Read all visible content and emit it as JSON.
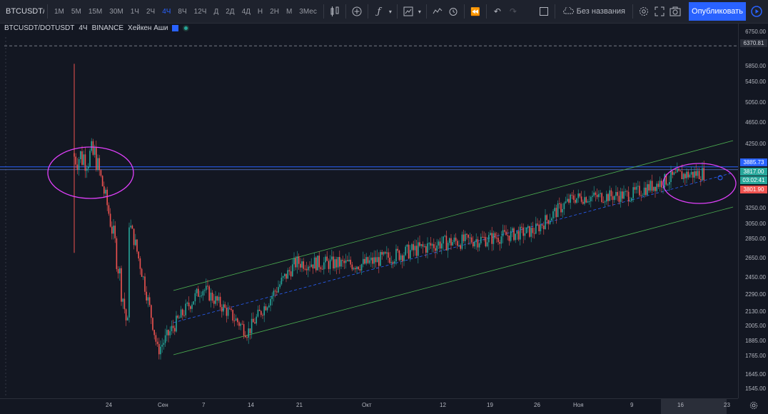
{
  "toolbar": {
    "symbol": "BTCUSDT/DOTUSDT",
    "symbol_short": "BTCUSDT/D",
    "timeframes": [
      "1М",
      "5М",
      "15М",
      "30М",
      "1Ч",
      "2Ч",
      "4Ч",
      "8Ч",
      "12Ч",
      "Д",
      "2Д",
      "4Д",
      "Н",
      "2Н",
      "М",
      "3Мес"
    ],
    "active_timeframe": "4Ч",
    "layout_name": "Без названия",
    "publish_label": "Опубликовать",
    "icons": [
      "bar-type-icon",
      "add-indicator-icon",
      "indicators-icon",
      "templates-icon",
      "alert-icon",
      "replay-icon",
      "undo-icon",
      "redo-icon",
      "checkbox-icon",
      "cloud-icon",
      "settings-icon",
      "fullscreen-icon",
      "camera-icon",
      "play-icon"
    ]
  },
  "legend": {
    "symbol": "BTCUSDT/DOTUSDT",
    "interval": "4Ч",
    "exchange": "BINANCE",
    "chart_type": "Хейкен Аши"
  },
  "colors": {
    "background": "#131722",
    "up": "#26a69a",
    "down": "#ef5350",
    "channel": "#4caf50",
    "annotation": "#e040fb",
    "accent": "#2962ff"
  },
  "price_axis": {
    "ticks": [
      "6750.00",
      "5850.00",
      "5450.00",
      "5050.00",
      "4650.00",
      "4250.00",
      "3250.00",
      "3050.00",
      "2850.00",
      "2650.00",
      "2450.00",
      "2290.00",
      "2130.00",
      "2005.00",
      "1885.00",
      "1765.00",
      "1645.00",
      "1545.00"
    ],
    "tags": {
      "dashed_level": "6370.81",
      "horizontal_line": "3885.73",
      "last_price": "3817.00",
      "countdown": "03:02:41",
      "prev_close": "3801.90"
    }
  },
  "time_axis": {
    "labels": [
      "24",
      "Сен",
      "7",
      "14",
      "21",
      "Окт",
      "12",
      "19",
      "26",
      "Ноя",
      "9",
      "16",
      "23"
    ]
  },
  "chart_data": {
    "type": "candlestick",
    "symbol": "BTCUSDT/DOTUSDT",
    "interval": "4Ч",
    "style": "Хейкен Аши",
    "x_labels": [
      "24",
      "Сен",
      "7",
      "14",
      "21",
      "Окт",
      "12",
      "19",
      "26",
      "Ноя",
      "9",
      "16",
      "23"
    ],
    "price_trend": [
      {
        "label": "24",
        "close": 4100
      },
      {
        "label": "Сен",
        "close": 1800
      },
      {
        "label": "7",
        "close": 2350
      },
      {
        "label": "14",
        "close": 1950
      },
      {
        "label": "21",
        "close": 2600
      },
      {
        "label": "Окт",
        "close": 2580
      },
      {
        "label": "12",
        "close": 2800
      },
      {
        "label": "19",
        "close": 2850
      },
      {
        "label": "26",
        "close": 2950
      },
      {
        "label": "Ноя",
        "close": 3400
      },
      {
        "label": "9",
        "close": 3450
      },
      {
        "label": "16",
        "close": 3750
      },
      {
        "label": "23",
        "close": 3817
      }
    ],
    "spike_high": 5900,
    "spike_low": 2700,
    "levels": {
      "horizontal_line": 3885.73,
      "dashed_line": 6370.81,
      "last_price": 3817.0
    },
    "grid": false
  }
}
